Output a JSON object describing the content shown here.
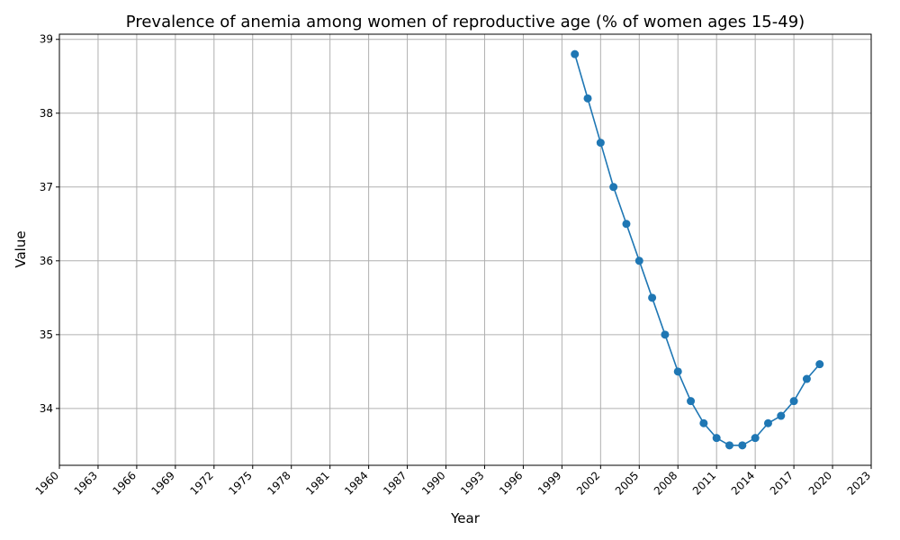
{
  "chart_data": {
    "type": "line",
    "title": "Prevalence of anemia among women of reproductive age (% of women ages 15-49)",
    "xlabel": "Year",
    "ylabel": "Value",
    "xlim": [
      1960,
      2023
    ],
    "ylim": [
      33.23,
      39.07
    ],
    "grid": true,
    "xticks": [
      1960,
      1963,
      1966,
      1969,
      1972,
      1975,
      1978,
      1981,
      1984,
      1987,
      1990,
      1993,
      1996,
      1999,
      2002,
      2005,
      2008,
      2011,
      2014,
      2017,
      2020,
      2023
    ],
    "yticks": [
      34,
      35,
      36,
      37,
      38,
      39
    ],
    "color": "#1f77b4",
    "series": [
      {
        "x": [
          2000,
          2001,
          2002,
          2003,
          2004,
          2005,
          2006,
          2007,
          2008,
          2009,
          2010,
          2011,
          2012,
          2013,
          2014,
          2015,
          2016,
          2017,
          2018,
          2019
        ],
        "values": [
          38.8,
          38.2,
          37.6,
          37.0,
          36.5,
          36.0,
          35.5,
          35.0,
          34.5,
          34.1,
          33.8,
          33.6,
          33.5,
          33.5,
          33.6,
          33.8,
          33.9,
          34.1,
          34.4,
          34.6
        ]
      }
    ]
  }
}
